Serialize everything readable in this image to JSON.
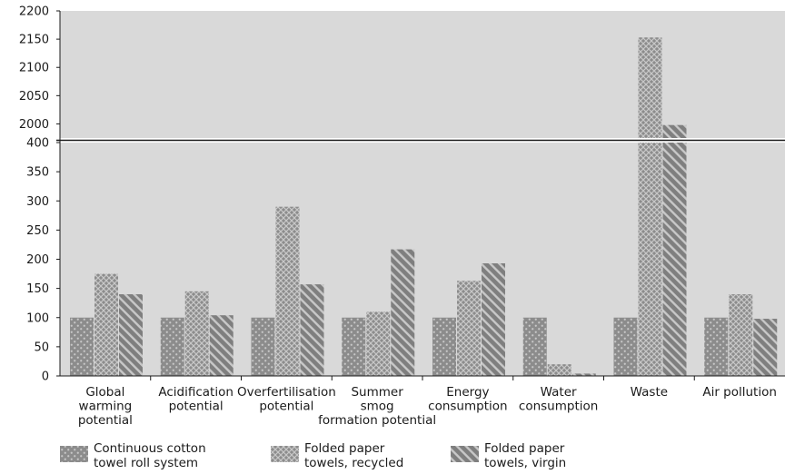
{
  "chart_data": {
    "type": "bar",
    "broken_axis": true,
    "categories": [
      [
        "Global",
        "warming",
        "potential"
      ],
      [
        "Acidification",
        "potential"
      ],
      [
        "Overfertilisation",
        "potential"
      ],
      [
        "Summer",
        "smog",
        "formation potential"
      ],
      [
        "Energy",
        "consumption"
      ],
      [
        "Water",
        "consumption"
      ],
      [
        "Waste"
      ],
      [
        "Air pollution"
      ]
    ],
    "series": [
      {
        "name": "Continuous cotton towel roll system",
        "legend_lines": [
          "Continuous cotton",
          "towel roll system"
        ],
        "values": [
          100,
          100,
          100,
          100,
          100,
          100,
          100,
          100
        ]
      },
      {
        "name": "Folded paper towels, recycled",
        "legend_lines": [
          "Folded paper",
          "towels, recycled"
        ],
        "values": [
          175,
          145,
          290,
          110,
          163,
          20,
          2153,
          140
        ]
      },
      {
        "name": "Folded paper towels, virgin",
        "legend_lines": [
          "Folded paper",
          "towels, virgin"
        ],
        "values": [
          140,
          104,
          157,
          217,
          193,
          4,
          1998,
          98
        ]
      }
    ],
    "lower_ticks": [
      0,
      50,
      100,
      150,
      200,
      250,
      300,
      350,
      400
    ],
    "upper_ticks": [
      2000,
      2050,
      2100,
      2150,
      2200
    ],
    "lower_range": [
      0,
      400
    ],
    "upper_range": [
      1975,
      2200
    ],
    "grid": false,
    "legend_position": "bottom-left",
    "colors": {
      "panel": "#d9d9d9",
      "bar_fill": "#8c8c8c",
      "bar_pattern": "#c8c8c8",
      "axis": "#1a1a1a"
    }
  }
}
